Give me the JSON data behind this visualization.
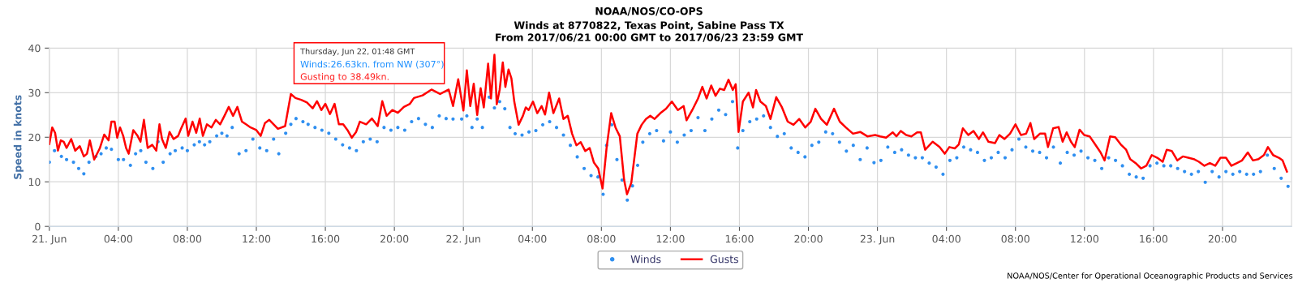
{
  "chart_data": {
    "type": "line",
    "title": "NOAA/NOS/CO-OPS",
    "subtitle": "Winds at 8770822, Texas Point, Sabine Pass TX\nFrom 2017/06/21 00:00 GMT to 2017/06/23 23:59 GMT",
    "ylabel": "Speed in knots",
    "annotations": [
      "Thursday, Jun 22, 01:48 GMT",
      "Winds:26.63kn. from NW (307°)",
      "Gusting to 38.49kn.",
      "NOAA/NOS/Center for Operational Oceanographic Products and Services"
    ],
    "xlim": [
      "2017-06-21T00:00",
      "2017-06-24T00:00"
    ],
    "ylim": [
      0,
      40
    ],
    "yticks": [
      0,
      10,
      20,
      30,
      40
    ],
    "xticks": [
      {
        "value": "2017-06-21T00:00",
        "label": "21. Jun"
      },
      {
        "value": "2017-06-21T04:00",
        "label": "04:00"
      },
      {
        "value": "2017-06-21T08:00",
        "label": "08:00"
      },
      {
        "value": "2017-06-21T12:00",
        "label": "12:00"
      },
      {
        "value": "2017-06-21T16:00",
        "label": "16:00"
      },
      {
        "value": "2017-06-21T20:00",
        "label": "20:00"
      },
      {
        "value": "2017-06-22T00:00",
        "label": "22. Jun"
      },
      {
        "value": "2017-06-22T04:00",
        "label": "04:00"
      },
      {
        "value": "2017-06-22T08:00",
        "label": "08:00"
      },
      {
        "value": "2017-06-22T12:00",
        "label": "12:00"
      },
      {
        "value": "2017-06-22T16:00",
        "label": "16:00"
      },
      {
        "value": "2017-06-22T20:00",
        "label": "20:00"
      },
      {
        "value": "2017-06-23T00:00",
        "label": "23. Jun"
      },
      {
        "value": "2017-06-23T04:00",
        "label": "04:00"
      },
      {
        "value": "2017-06-23T08:00",
        "label": "08:00"
      },
      {
        "value": "2017-06-23T12:00",
        "label": "12:00"
      },
      {
        "value": "2017-06-23T16:00",
        "label": "16:00"
      },
      {
        "value": "2017-06-23T20:00",
        "label": "20:00"
      }
    ],
    "grid": true,
    "legend": "bottom",
    "series": [
      {
        "name": "Winds",
        "type": "scatter",
        "marker": "circle",
        "color": "#2f8ff0",
        "x": [
          "2017-06-21T00:00",
          "2017-06-21T00:18",
          "2017-06-21T00:42",
          "2017-06-21T01:00",
          "2017-06-21T01:24",
          "2017-06-21T01:42",
          "2017-06-21T02:00",
          "2017-06-21T02:18",
          "2017-06-21T02:42",
          "2017-06-21T03:00",
          "2017-06-21T03:18",
          "2017-06-21T03:36",
          "2017-06-21T04:00",
          "2017-06-21T04:18",
          "2017-06-21T04:42",
          "2017-06-21T05:00",
          "2017-06-21T05:18",
          "2017-06-21T05:36",
          "2017-06-21T06:00",
          "2017-06-21T06:18",
          "2017-06-21T06:36",
          "2017-06-21T07:00",
          "2017-06-21T07:18",
          "2017-06-21T07:42",
          "2017-06-21T08:00",
          "2017-06-21T08:24",
          "2017-06-21T08:42",
          "2017-06-21T09:00",
          "2017-06-21T09:18",
          "2017-06-21T09:42",
          "2017-06-21T10:00",
          "2017-06-21T10:18",
          "2017-06-21T10:36",
          "2017-06-21T11:00",
          "2017-06-21T11:24",
          "2017-06-21T11:48",
          "2017-06-21T12:12",
          "2017-06-21T12:36",
          "2017-06-21T13:00",
          "2017-06-21T13:18",
          "2017-06-21T13:42",
          "2017-06-21T14:00",
          "2017-06-21T14:18",
          "2017-06-21T14:42",
          "2017-06-21T15:00",
          "2017-06-21T15:24",
          "2017-06-21T15:48",
          "2017-06-21T16:12",
          "2017-06-21T16:36",
          "2017-06-21T17:00",
          "2017-06-21T17:24",
          "2017-06-21T17:48",
          "2017-06-21T18:12",
          "2017-06-21T18:36",
          "2017-06-21T19:00",
          "2017-06-21T19:24",
          "2017-06-21T19:48",
          "2017-06-21T20:12",
          "2017-06-21T20:36",
          "2017-06-21T21:00",
          "2017-06-21T21:24",
          "2017-06-21T21:48",
          "2017-06-21T22:12",
          "2017-06-21T22:36",
          "2017-06-21T23:00",
          "2017-06-21T23:24",
          "2017-06-21T23:54",
          "2017-06-22T00:12",
          "2017-06-22T00:30",
          "2017-06-22T00:48",
          "2017-06-22T01:06",
          "2017-06-22T01:30",
          "2017-06-22T01:48",
          "2017-06-22T02:06",
          "2017-06-22T02:24",
          "2017-06-22T02:42",
          "2017-06-22T03:00",
          "2017-06-22T03:24",
          "2017-06-22T03:48",
          "2017-06-22T04:12",
          "2017-06-22T04:36",
          "2017-06-22T05:00",
          "2017-06-22T05:24",
          "2017-06-22T05:48",
          "2017-06-22T06:12",
          "2017-06-22T06:36",
          "2017-06-22T07:00",
          "2017-06-22T07:24",
          "2017-06-22T07:48",
          "2017-06-22T08:06",
          "2017-06-22T08:18",
          "2017-06-22T08:36",
          "2017-06-22T08:54",
          "2017-06-22T09:12",
          "2017-06-22T09:30",
          "2017-06-22T09:48",
          "2017-06-22T10:06",
          "2017-06-22T10:24",
          "2017-06-22T10:48",
          "2017-06-22T11:12",
          "2017-06-22T11:36",
          "2017-06-22T12:00",
          "2017-06-22T12:24",
          "2017-06-22T12:48",
          "2017-06-22T13:12",
          "2017-06-22T13:36",
          "2017-06-22T14:00",
          "2017-06-22T14:24",
          "2017-06-22T14:48",
          "2017-06-22T15:12",
          "2017-06-22T15:36",
          "2017-06-22T15:54",
          "2017-06-22T16:12",
          "2017-06-22T16:36",
          "2017-06-22T17:00",
          "2017-06-22T17:24",
          "2017-06-22T17:48",
          "2017-06-22T18:12",
          "2017-06-22T18:36",
          "2017-06-22T19:00",
          "2017-06-22T19:24",
          "2017-06-22T19:48",
          "2017-06-22T20:12",
          "2017-06-22T20:36",
          "2017-06-22T21:00",
          "2017-06-22T21:24",
          "2017-06-22T21:48",
          "2017-06-22T22:12",
          "2017-06-22T22:36",
          "2017-06-22T23:00",
          "2017-06-22T23:24",
          "2017-06-22T23:48",
          "2017-06-23T00:12",
          "2017-06-23T00:36",
          "2017-06-23T01:00",
          "2017-06-23T01:24",
          "2017-06-23T01:48",
          "2017-06-23T02:12",
          "2017-06-23T02:36",
          "2017-06-23T03:00",
          "2017-06-23T03:24",
          "2017-06-23T03:48",
          "2017-06-23T04:12",
          "2017-06-23T04:36",
          "2017-06-23T05:00",
          "2017-06-23T05:24",
          "2017-06-23T05:48",
          "2017-06-23T06:12",
          "2017-06-23T06:36",
          "2017-06-23T07:00",
          "2017-06-23T07:24",
          "2017-06-23T07:48",
          "2017-06-23T08:12",
          "2017-06-23T08:36",
          "2017-06-23T09:00",
          "2017-06-23T09:24",
          "2017-06-23T09:48",
          "2017-06-23T10:12",
          "2017-06-23T10:36",
          "2017-06-23T11:00",
          "2017-06-23T11:24",
          "2017-06-23T11:48",
          "2017-06-23T12:12",
          "2017-06-23T12:36",
          "2017-06-23T13:00",
          "2017-06-23T13:24",
          "2017-06-23T13:48",
          "2017-06-23T14:12",
          "2017-06-23T14:36",
          "2017-06-23T15:00",
          "2017-06-23T15:24",
          "2017-06-23T15:48",
          "2017-06-23T16:12",
          "2017-06-23T16:36",
          "2017-06-23T17:00",
          "2017-06-23T17:24",
          "2017-06-23T17:48",
          "2017-06-23T18:12",
          "2017-06-23T18:36",
          "2017-06-23T19:00",
          "2017-06-23T19:24",
          "2017-06-23T19:48",
          "2017-06-23T20:12",
          "2017-06-23T20:36",
          "2017-06-23T21:00",
          "2017-06-23T21:24",
          "2017-06-23T21:48",
          "2017-06-23T22:12",
          "2017-06-23T22:36",
          "2017-06-23T23:00",
          "2017-06-23T23:24",
          "2017-06-23T23:48"
        ],
        "values": [
          14.4,
          17,
          15.7,
          15,
          14.4,
          13,
          11.8,
          14.4,
          15.7,
          16.3,
          17.6,
          17.3,
          15,
          15,
          13.7,
          16.3,
          17,
          14.4,
          13,
          19,
          14.4,
          16.3,
          17,
          17.6,
          17,
          18.3,
          19,
          18.3,
          19,
          20.3,
          20.9,
          20.3,
          22.2,
          16.3,
          17,
          19.6,
          17.6,
          17,
          19.6,
          16.3,
          20.9,
          22.9,
          24.2,
          23.5,
          22.9,
          22.2,
          21.6,
          20.9,
          19.6,
          18.3,
          17.6,
          17,
          19,
          19.6,
          19,
          22.2,
          21.6,
          22.2,
          21.6,
          23.5,
          24.2,
          22.9,
          22.2,
          24.8,
          24.2,
          24.1,
          24.1,
          24.8,
          22.2,
          24.1,
          22.2,
          29,
          26.6,
          28,
          26.4,
          22.2,
          20.8,
          20.5,
          21.2,
          21.5,
          22.8,
          23.5,
          22.2,
          20.5,
          18.2,
          15.6,
          13,
          11.4,
          11.1,
          7.2,
          18.2,
          22.8,
          15,
          10.4,
          5.9,
          9.1,
          13.7,
          18.9,
          20.8,
          21.5,
          19.2,
          21.2,
          18.9,
          20.5,
          21.5,
          24.4,
          21.5,
          24.1,
          26.1,
          25.1,
          28,
          17.6,
          21.5,
          23.5,
          24.1,
          24.8,
          22.2,
          20.2,
          20.8,
          17.6,
          16.6,
          15.6,
          18.2,
          18.9,
          21.2,
          20.8,
          18.9,
          16.9,
          18.2,
          15,
          17.6,
          14.3,
          14.8,
          17.8,
          16.6,
          17.2,
          16,
          15.4,
          15.4,
          14.2,
          13.3,
          11.7,
          14.8,
          15.4,
          17.8,
          17.2,
          16.6,
          14.8,
          15.4,
          16.6,
          15.4,
          17.2,
          19.6,
          17.8,
          16.9,
          16.6,
          15.4,
          17.8,
          14.2,
          16.6,
          16,
          16.9,
          15.4,
          14.8,
          13,
          15.4,
          14.8,
          13.6,
          11.7,
          11.1,
          10.8,
          13.6,
          14.2,
          13.6,
          13.6,
          13,
          12.3,
          11.7,
          12.3,
          9.9,
          12.3,
          11.1,
          12.3,
          11.7,
          12.3,
          11.7,
          11.7,
          12.3,
          16,
          13,
          10.8,
          9
        ]
      },
      {
        "name": "Gusts",
        "marker": "none",
        "line_style": "solid",
        "color": "#ff0000",
        "x": [
          "2017-06-21T00:00",
          "2017-06-21T00:10",
          "2017-06-21T00:20",
          "2017-06-21T00:30",
          "2017-06-21T00:40",
          "2017-06-21T00:50",
          "2017-06-21T01:00",
          "2017-06-21T01:16",
          "2017-06-21T01:30",
          "2017-06-21T01:46",
          "2017-06-21T02:00",
          "2017-06-21T02:11",
          "2017-06-21T02:21",
          "2017-06-21T02:36",
          "2017-06-21T02:56",
          "2017-06-21T03:11",
          "2017-06-21T03:26",
          "2017-06-21T03:36",
          "2017-06-21T03:47",
          "2017-06-21T03:56",
          "2017-06-21T04:06",
          "2017-06-21T04:17",
          "2017-06-21T04:27",
          "2017-06-21T04:36",
          "2017-06-21T04:52",
          "2017-06-21T05:07",
          "2017-06-21T05:17",
          "2017-06-21T05:29",
          "2017-06-21T05:42",
          "2017-06-21T05:58",
          "2017-06-21T06:12",
          "2017-06-21T06:23",
          "2017-06-21T06:32",
          "2017-06-21T06:45",
          "2017-06-21T06:58",
          "2017-06-21T07:12",
          "2017-06-21T07:28",
          "2017-06-21T07:38",
          "2017-06-21T07:54",
          "2017-06-21T08:03",
          "2017-06-21T08:18",
          "2017-06-21T08:31",
          "2017-06-21T08:43",
          "2017-06-21T08:54",
          "2017-06-21T09:08",
          "2017-06-21T09:24",
          "2017-06-21T09:39",
          "2017-06-21T09:54",
          "2017-06-21T10:09",
          "2017-06-21T10:24",
          "2017-06-21T10:39",
          "2017-06-21T10:54",
          "2017-06-21T11:10",
          "2017-06-21T11:24",
          "2017-06-21T11:40",
          "2017-06-21T12:00",
          "2017-06-21T12:15",
          "2017-06-21T12:30",
          "2017-06-21T12:45",
          "2017-06-21T13:00",
          "2017-06-21T13:15",
          "2017-06-21T13:40",
          "2017-06-21T13:50",
          "2017-06-21T14:00",
          "2017-06-21T14:16",
          "2017-06-21T14:36",
          "2017-06-21T14:56",
          "2017-06-21T15:16",
          "2017-06-21T15:31",
          "2017-06-21T15:46",
          "2017-06-21T16:00",
          "2017-06-21T16:16",
          "2017-06-21T16:32",
          "2017-06-21T16:47",
          "2017-06-21T17:02",
          "2017-06-21T17:17",
          "2017-06-21T17:32",
          "2017-06-21T17:47",
          "2017-06-21T18:00",
          "2017-06-21T18:22",
          "2017-06-21T18:42",
          "2017-06-21T19:02",
          "2017-06-21T19:18",
          "2017-06-21T19:33",
          "2017-06-21T19:53",
          "2017-06-21T20:12",
          "2017-06-21T20:33",
          "2017-06-21T20:54",
          "2017-06-21T21:08",
          "2017-06-21T21:38",
          "2017-06-21T22:09",
          "2017-06-21T22:39",
          "2017-06-21T23:09",
          "2017-06-21T23:24",
          "2017-06-21T23:42",
          "2017-06-22T00:00",
          "2017-06-22T00:12",
          "2017-06-22T00:24",
          "2017-06-22T00:36",
          "2017-06-22T00:48",
          "2017-06-22T01:00",
          "2017-06-22T01:11",
          "2017-06-22T01:26",
          "2017-06-22T01:36",
          "2017-06-22T01:48",
          "2017-06-22T01:56",
          "2017-06-22T02:06",
          "2017-06-22T02:17",
          "2017-06-22T02:26",
          "2017-06-22T02:37",
          "2017-06-22T02:47",
          "2017-06-22T02:57",
          "2017-06-22T03:12",
          "2017-06-22T03:27",
          "2017-06-22T03:37",
          "2017-06-22T03:47",
          "2017-06-22T04:02",
          "2017-06-22T04:17",
          "2017-06-22T04:32",
          "2017-06-22T04:44",
          "2017-06-22T04:58",
          "2017-06-22T05:13",
          "2017-06-22T05:33",
          "2017-06-22T05:48",
          "2017-06-22T06:03",
          "2017-06-22T06:18",
          "2017-06-22T06:33",
          "2017-06-22T06:48",
          "2017-06-22T07:04",
          "2017-06-22T07:19",
          "2017-06-22T07:34",
          "2017-06-22T07:49",
          "2017-06-22T08:04",
          "2017-06-22T08:18",
          "2017-06-22T08:34",
          "2017-06-22T08:49",
          "2017-06-22T09:04",
          "2017-06-22T09:19",
          "2017-06-22T09:29",
          "2017-06-22T09:44",
          "2017-06-22T10:05",
          "2017-06-22T10:20",
          "2017-06-22T10:35",
          "2017-06-22T10:50",
          "2017-06-22T11:05",
          "2017-06-22T11:25",
          "2017-06-22T11:45",
          "2017-06-22T12:05",
          "2017-06-22T12:26",
          "2017-06-22T12:46",
          "2017-06-22T12:56",
          "2017-06-22T13:16",
          "2017-06-22T13:36",
          "2017-06-22T13:51",
          "2017-06-22T14:06",
          "2017-06-22T14:22",
          "2017-06-22T14:37",
          "2017-06-22T14:52",
          "2017-06-22T15:07",
          "2017-06-22T15:22",
          "2017-06-22T15:37",
          "2017-06-22T15:47",
          "2017-06-22T15:57",
          "2017-06-22T16:12",
          "2017-06-22T16:32",
          "2017-06-22T16:47",
          "2017-06-22T16:58",
          "2017-06-22T17:13",
          "2017-06-22T17:32",
          "2017-06-22T17:48",
          "2017-06-22T18:08",
          "2017-06-22T18:28",
          "2017-06-22T18:48",
          "2017-06-22T19:08",
          "2017-06-22T19:28",
          "2017-06-22T19:49",
          "2017-06-22T20:08",
          "2017-06-22T20:24",
          "2017-06-22T20:44",
          "2017-06-22T21:04",
          "2017-06-22T21:29",
          "2017-06-22T21:49",
          "2017-06-22T22:10",
          "2017-06-22T22:35",
          "2017-06-22T23:00",
          "2017-06-22T23:25",
          "2017-06-22T23:52",
          "2017-06-23T00:10",
          "2017-06-23T00:30",
          "2017-06-23T00:53",
          "2017-06-23T01:06",
          "2017-06-23T01:21",
          "2017-06-23T01:40",
          "2017-06-23T01:58",
          "2017-06-23T02:18",
          "2017-06-23T02:31",
          "2017-06-23T02:46",
          "2017-06-23T03:12",
          "2017-06-23T03:36",
          "2017-06-23T03:54",
          "2017-06-23T04:10",
          "2017-06-23T04:29",
          "2017-06-23T04:43",
          "2017-06-23T04:57",
          "2017-06-23T05:16",
          "2017-06-23T05:34",
          "2017-06-23T05:53",
          "2017-06-23T06:07",
          "2017-06-23T06:26",
          "2017-06-23T06:49",
          "2017-06-23T07:04",
          "2017-06-23T07:22",
          "2017-06-23T07:41",
          "2017-06-23T08:00",
          "2017-06-23T08:19",
          "2017-06-23T08:37",
          "2017-06-23T08:52",
          "2017-06-23T09:05",
          "2017-06-23T09:25",
          "2017-06-23T09:43",
          "2017-06-23T09:53",
          "2017-06-23T10:11",
          "2017-06-23T10:30",
          "2017-06-23T10:44",
          "2017-06-23T10:58",
          "2017-06-23T11:13",
          "2017-06-23T11:26",
          "2017-06-23T11:43",
          "2017-06-23T11:59",
          "2017-06-23T12:18",
          "2017-06-23T12:37",
          "2017-06-23T12:56",
          "2017-06-23T13:10",
          "2017-06-23T13:29",
          "2017-06-23T13:47",
          "2017-06-23T14:06",
          "2017-06-23T14:25",
          "2017-06-23T14:39",
          "2017-06-23T14:58",
          "2017-06-23T15:17",
          "2017-06-23T15:35",
          "2017-06-23T15:54",
          "2017-06-23T16:13",
          "2017-06-23T16:32",
          "2017-06-23T16:46",
          "2017-06-23T17:04",
          "2017-06-23T17:23",
          "2017-06-23T17:42",
          "2017-06-23T18:01",
          "2017-06-23T18:20",
          "2017-06-23T18:38",
          "2017-06-23T18:57",
          "2017-06-23T19:16",
          "2017-06-23T19:35",
          "2017-06-23T19:53",
          "2017-06-23T20:12",
          "2017-06-23T20:31",
          "2017-06-23T20:50",
          "2017-06-23T21:08",
          "2017-06-23T21:28",
          "2017-06-23T21:46",
          "2017-06-23T22:05",
          "2017-06-23T22:24",
          "2017-06-23T22:38",
          "2017-06-23T22:56",
          "2017-06-23T23:16",
          "2017-06-23T23:29",
          "2017-06-23T23:44"
        ],
        "values": [
          18.5,
          22.2,
          21,
          17,
          19.3,
          19,
          17.6,
          19.6,
          17,
          18,
          15.7,
          16.3,
          19.3,
          15,
          17.6,
          20.6,
          19.3,
          23.5,
          23.5,
          19.9,
          22.2,
          20.3,
          17.6,
          16.3,
          21.6,
          20.3,
          19,
          23.9,
          17.6,
          18.3,
          17,
          22.9,
          19.6,
          17.6,
          21.2,
          19.6,
          20.3,
          21.9,
          24.2,
          20.3,
          23.5,
          21,
          24.2,
          20.3,
          22.9,
          22.2,
          23.9,
          22.9,
          24.8,
          26.8,
          24.8,
          26.8,
          23.5,
          22.9,
          22.2,
          21.6,
          20.3,
          23.2,
          23.9,
          22.9,
          21.9,
          22.5,
          26.1,
          29.7,
          28.8,
          28.4,
          27.8,
          26.5,
          28.1,
          26.1,
          27.5,
          25.2,
          27.5,
          22.9,
          22.9,
          21.6,
          19.9,
          21.2,
          23.5,
          22.9,
          24.2,
          22.5,
          28.1,
          24.8,
          26.1,
          25.5,
          26.8,
          27.5,
          28.8,
          29.4,
          30.7,
          29.7,
          30.7,
          27,
          33,
          26,
          35,
          27,
          32,
          25,
          31,
          26.7,
          36.5,
          28.7,
          38.5,
          27.4,
          30.6,
          36.8,
          31.3,
          35.2,
          33.2,
          28,
          22.8,
          24.8,
          26.7,
          26.1,
          28,
          25.4,
          27,
          25.1,
          30,
          25.4,
          28.7,
          24.1,
          24.8,
          20.8,
          18.2,
          18.9,
          16.9,
          17.6,
          14.3,
          13,
          8.5,
          17.6,
          25.4,
          22.2,
          20.2,
          10.4,
          7.2,
          9.8,
          20.8,
          22.8,
          24.1,
          24.8,
          24.1,
          25.4,
          26.4,
          28,
          26.1,
          27,
          23.8,
          26.1,
          28.7,
          31.3,
          28.7,
          31.6,
          29.3,
          30.9,
          30.6,
          32.9,
          30.6,
          31.9,
          21.2,
          28,
          30,
          26.7,
          30.6,
          28,
          27,
          24.1,
          29,
          26.7,
          23.5,
          22.8,
          24.1,
          22.2,
          23.5,
          26.4,
          24.1,
          22.8,
          26.4,
          23.5,
          22.2,
          20.8,
          21.2,
          20.2,
          20.5,
          20.2,
          19.9,
          21.1,
          20.2,
          21.4,
          20.5,
          20.2,
          21.1,
          21.1,
          17.2,
          19,
          17.8,
          16.3,
          17.8,
          17.5,
          18.4,
          22,
          20.5,
          21.4,
          19.6,
          21.1,
          19,
          18.7,
          20.5,
          19.6,
          20.8,
          22.9,
          20.5,
          20.8,
          23.2,
          19.6,
          20.8,
          20.8,
          17.8,
          22,
          22.3,
          19,
          21.1,
          19,
          17.8,
          21.7,
          20.5,
          20.2,
          18.4,
          16.6,
          14.8,
          20.2,
          20,
          18.4,
          17.2,
          15.1,
          14.2,
          13,
          13.6,
          16,
          15.4,
          14.5,
          17.2,
          16.9,
          14.8,
          15.7,
          15.4,
          15.1,
          14.5,
          13.6,
          14.2,
          13.6,
          15.4,
          15.4,
          13.6,
          14.2,
          14.8,
          16.6,
          14.8,
          15.1,
          16,
          17.8,
          16,
          15.4,
          14.8,
          12.3
        ]
      }
    ]
  }
}
